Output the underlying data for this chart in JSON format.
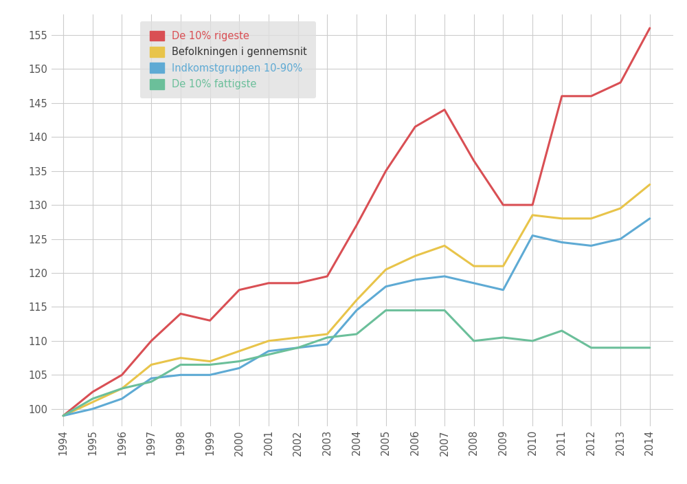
{
  "years": [
    1994,
    1995,
    1996,
    1997,
    1998,
    1999,
    2000,
    2001,
    2002,
    2003,
    2004,
    2005,
    2006,
    2007,
    2008,
    2009,
    2010,
    2011,
    2012,
    2013,
    2014
  ],
  "rigeste": [
    99.0,
    102.5,
    105.0,
    110.0,
    114.0,
    113.0,
    117.5,
    118.5,
    118.5,
    119.5,
    127.0,
    135.0,
    141.5,
    144.0,
    136.5,
    130.0,
    130.0,
    146.0,
    146.0,
    148.0,
    156.0
  ],
  "gennemsnit": [
    99.0,
    101.0,
    103.0,
    106.5,
    107.5,
    107.0,
    108.5,
    110.0,
    110.5,
    111.0,
    116.0,
    120.5,
    122.5,
    124.0,
    121.0,
    121.0,
    128.5,
    128.0,
    128.0,
    129.5,
    133.0
  ],
  "gruppe_10_90": [
    99.0,
    100.0,
    101.5,
    104.5,
    105.0,
    105.0,
    106.0,
    108.5,
    109.0,
    109.5,
    114.5,
    118.0,
    119.0,
    119.5,
    118.5,
    117.5,
    125.5,
    124.5,
    124.0,
    125.0,
    128.0
  ],
  "fattigste": [
    99.0,
    101.5,
    103.0,
    104.0,
    106.5,
    106.5,
    107.0,
    108.0,
    109.0,
    110.5,
    111.0,
    114.5,
    114.5,
    114.5,
    110.0,
    110.5,
    110.0,
    111.5,
    109.0,
    109.0,
    109.0
  ],
  "color_rigeste": "#d94f54",
  "color_gennemsnit": "#e8c44a",
  "color_gruppe_10_90": "#5eaad4",
  "color_fattigste": "#6bbf9a",
  "label_rigeste": "De 10% rigeste",
  "label_gennemsnit": "Befolkningen i gennemsnit",
  "label_gruppe_10_90": "Indkomstgruppen 10-90%",
  "label_fattigste": "De 10% fattigste",
  "text_color_rigeste": "#d94f54",
  "text_color_gennemsnit": "#333333",
  "text_color_gruppe_10_90": "#5eaad4",
  "text_color_fattigste": "#6bbf9a",
  "ylim_min": 97.5,
  "ylim_max": 158.0,
  "xlim_min": 1993.6,
  "xlim_max": 2014.8,
  "yticks": [
    100,
    105,
    110,
    115,
    120,
    125,
    130,
    135,
    140,
    145,
    150,
    155
  ],
  "bg_color": "#ffffff",
  "grid_color": "#cccccc",
  "legend_bg": "#e0e0e0",
  "linewidth": 2.2
}
